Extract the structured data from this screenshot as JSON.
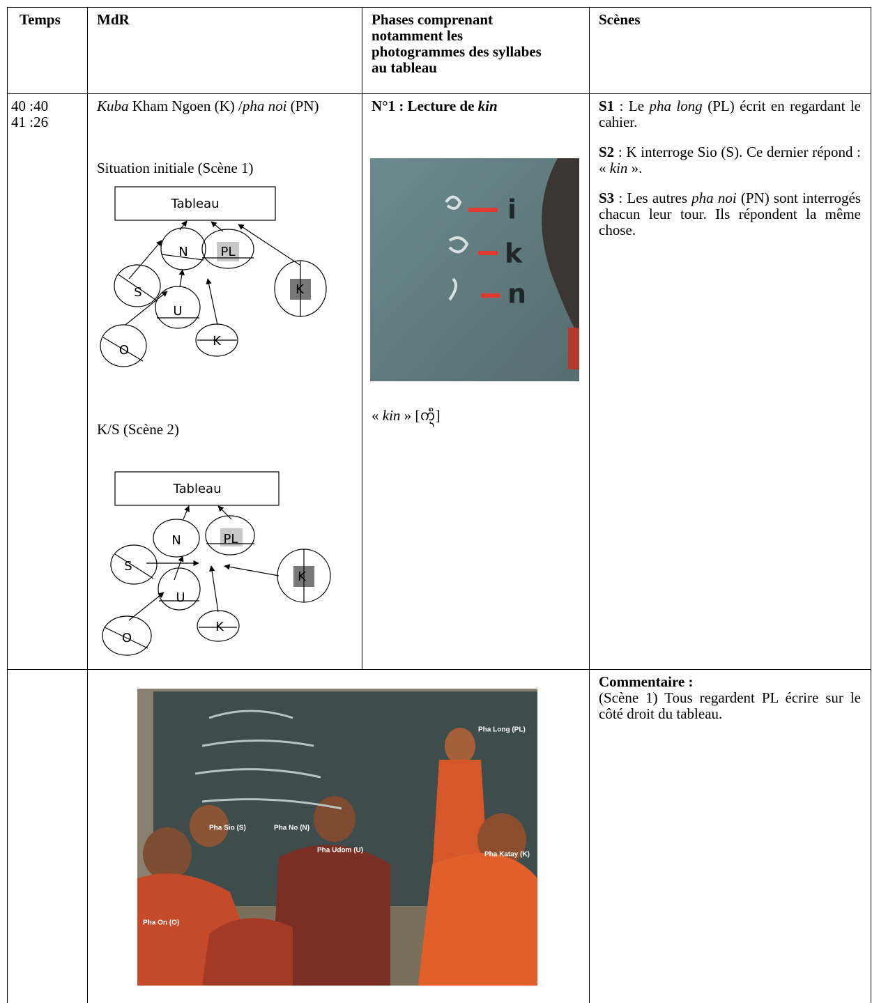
{
  "table": {
    "header": [
      "Temps",
      "MdR",
      "Phases comprenant notamment les photogrammes des syllabes au tableau",
      "Scènes"
    ],
    "row1": {
      "time": [
        "40 :40",
        "41 :26"
      ],
      "mdr": {
        "heading": [
          "Kuba",
          "Kham Ngoen (K) /",
          "pha noi",
          "(PN)"
        ],
        "scene1_caption": "Situation initiale (Scène 1)",
        "scene1_diagram": {
          "board": "Tableau",
          "people": [
            "N",
            "PL",
            "S",
            "U",
            "K",
            "K",
            "O"
          ]
        },
        "scene2_caption": "K/S (Scène 2)",
        "scene2_diagram": {
          "board": "Tableau",
          "people": [
            "N",
            "PL",
            "S",
            "U",
            "K",
            "K",
            "O"
          ]
        }
      },
      "phase": {
        "title": [
          "N°1 : Lecture de",
          "kin"
        ],
        "frame_letters": [
          "i",
          "k",
          "n"
        ],
        "caption": [
          "«",
          "kin",
          "» [ᨠᩥ᩠ᨶ]"
        ]
      },
      "scenes": [
        {
          "label": "S1",
          "text": [
            ": Le",
            "pha long",
            "(PL) écrit en regardant le cahier."
          ]
        },
        {
          "label": "S2",
          "text": [
            ": K interroge Sio (S). Ce dernier répond : «",
            "kin",
            "»."
          ]
        },
        {
          "label": "S3",
          "text": [
            ": Les autres",
            "pha noi",
            "(PN) sont interrogés chacun leur tour. Ils répondent la même chose."
          ]
        }
      ]
    },
    "row2": {
      "photo_labels": [
        "Pha Long (PL)",
        "Pha Sio (S)",
        "Pha No (N)",
        "Pha Udom (U)",
        "Pha Katay (K)",
        "Pha On (O)"
      ],
      "comment_title": "Commentaire :",
      "comment": "(Scène 1) Tous regardent PL écrire sur le côté droit du tableau."
    }
  }
}
